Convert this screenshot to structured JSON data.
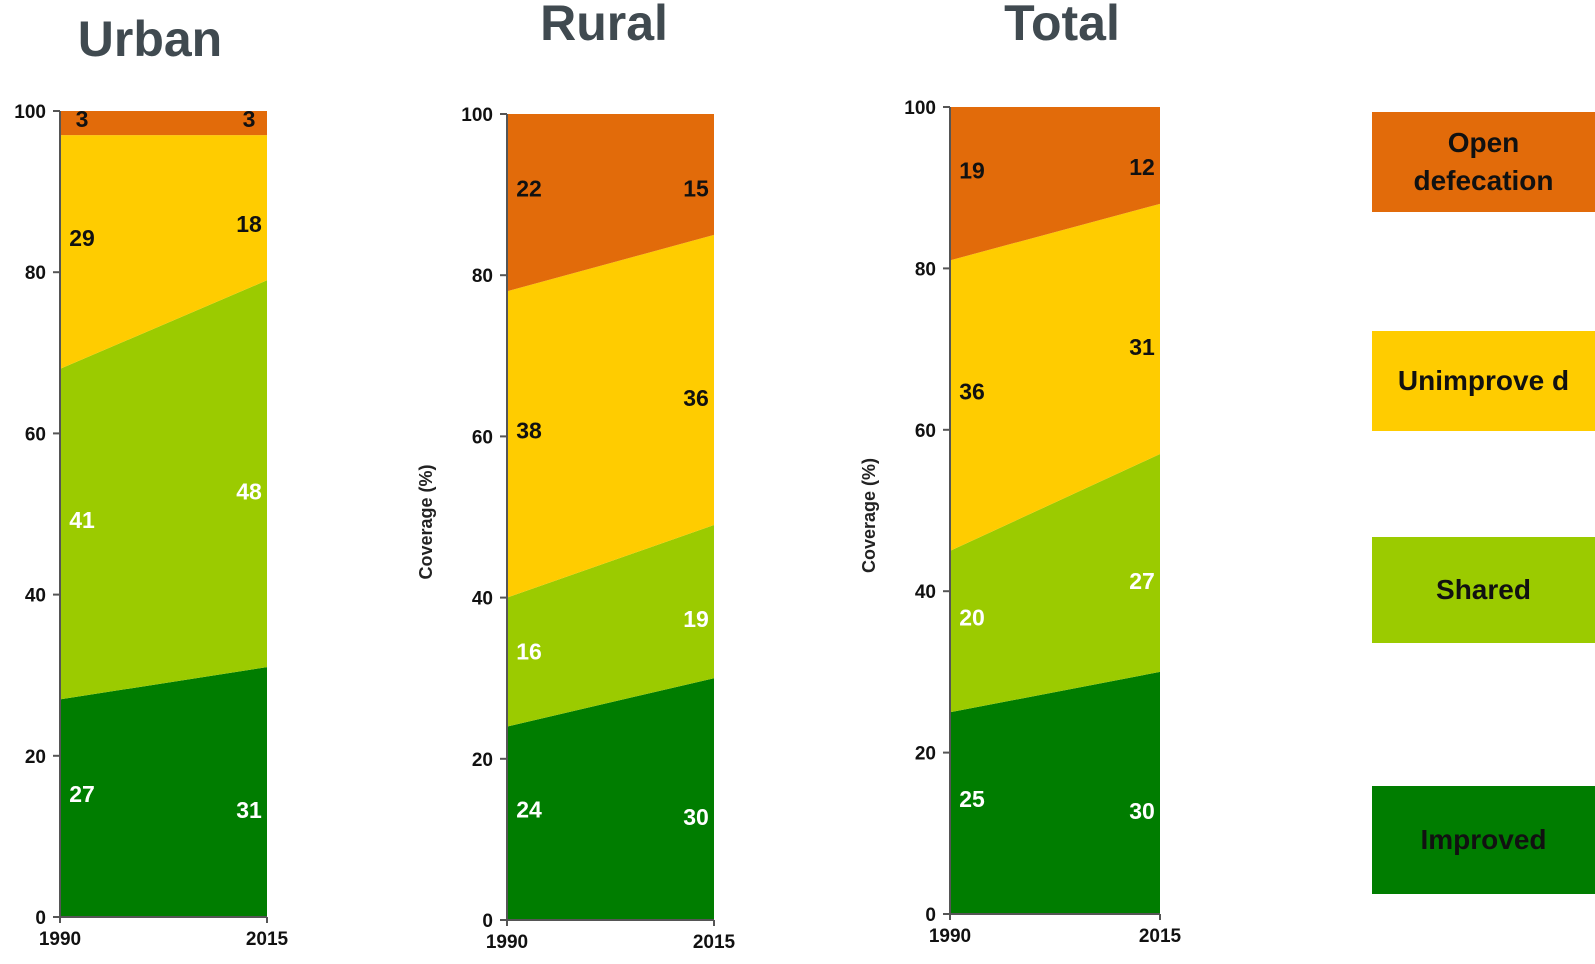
{
  "colors": {
    "improved": "#007d00",
    "shared": "#9bcb00",
    "unimproved": "#ffcc00",
    "open_defecation": "#e26b0a",
    "title": "#404a50"
  },
  "legend": [
    {
      "key": "open_defecation",
      "label": "Open defecation"
    },
    {
      "key": "unimproved",
      "label": "Unimprove d"
    },
    {
      "key": "shared",
      "label": "Shared"
    },
    {
      "key": "improved",
      "label": "Improved"
    }
  ],
  "chart_data": [
    {
      "type": "area",
      "title": "Urban",
      "ylabel": "",
      "x": [
        "1990",
        "2015"
      ],
      "ylim": [
        0,
        100
      ],
      "yticks": [
        0,
        20,
        40,
        60,
        80,
        100
      ],
      "series": [
        {
          "key": "improved",
          "name": "Improved",
          "values": [
            27,
            31
          ]
        },
        {
          "key": "shared",
          "name": "Shared",
          "values": [
            41,
            48
          ]
        },
        {
          "key": "unimproved",
          "name": "Unimprove d",
          "values": [
            29,
            18
          ]
        },
        {
          "key": "open_defecation",
          "name": "Open defecation",
          "values": [
            3,
            3
          ]
        }
      ]
    },
    {
      "type": "area",
      "title": "Rural",
      "ylabel": "Coverage (%)",
      "x": [
        "1990",
        "2015"
      ],
      "ylim": [
        0,
        100
      ],
      "yticks": [
        0,
        20,
        40,
        60,
        80,
        100
      ],
      "series": [
        {
          "key": "improved",
          "name": "Improved",
          "values": [
            24,
            30
          ]
        },
        {
          "key": "shared",
          "name": "Shared",
          "values": [
            16,
            19
          ]
        },
        {
          "key": "unimproved",
          "name": "Unimprove d",
          "values": [
            38,
            36
          ]
        },
        {
          "key": "open_defecation",
          "name": "Open defecation",
          "values": [
            22,
            15
          ]
        }
      ]
    },
    {
      "type": "area",
      "title": "Total",
      "ylabel": "Coverage (%)",
      "x": [
        "1990",
        "2015"
      ],
      "ylim": [
        0,
        100
      ],
      "yticks": [
        0,
        20,
        40,
        60,
        80,
        100
      ],
      "series": [
        {
          "key": "improved",
          "name": "Improved",
          "values": [
            25,
            30
          ]
        },
        {
          "key": "shared",
          "name": "Shared",
          "values": [
            20,
            27
          ]
        },
        {
          "key": "unimproved",
          "name": "Unimprove d",
          "values": [
            36,
            31
          ]
        },
        {
          "key": "open_defecation",
          "name": "Open defecation",
          "values": [
            19,
            12
          ]
        }
      ]
    }
  ]
}
